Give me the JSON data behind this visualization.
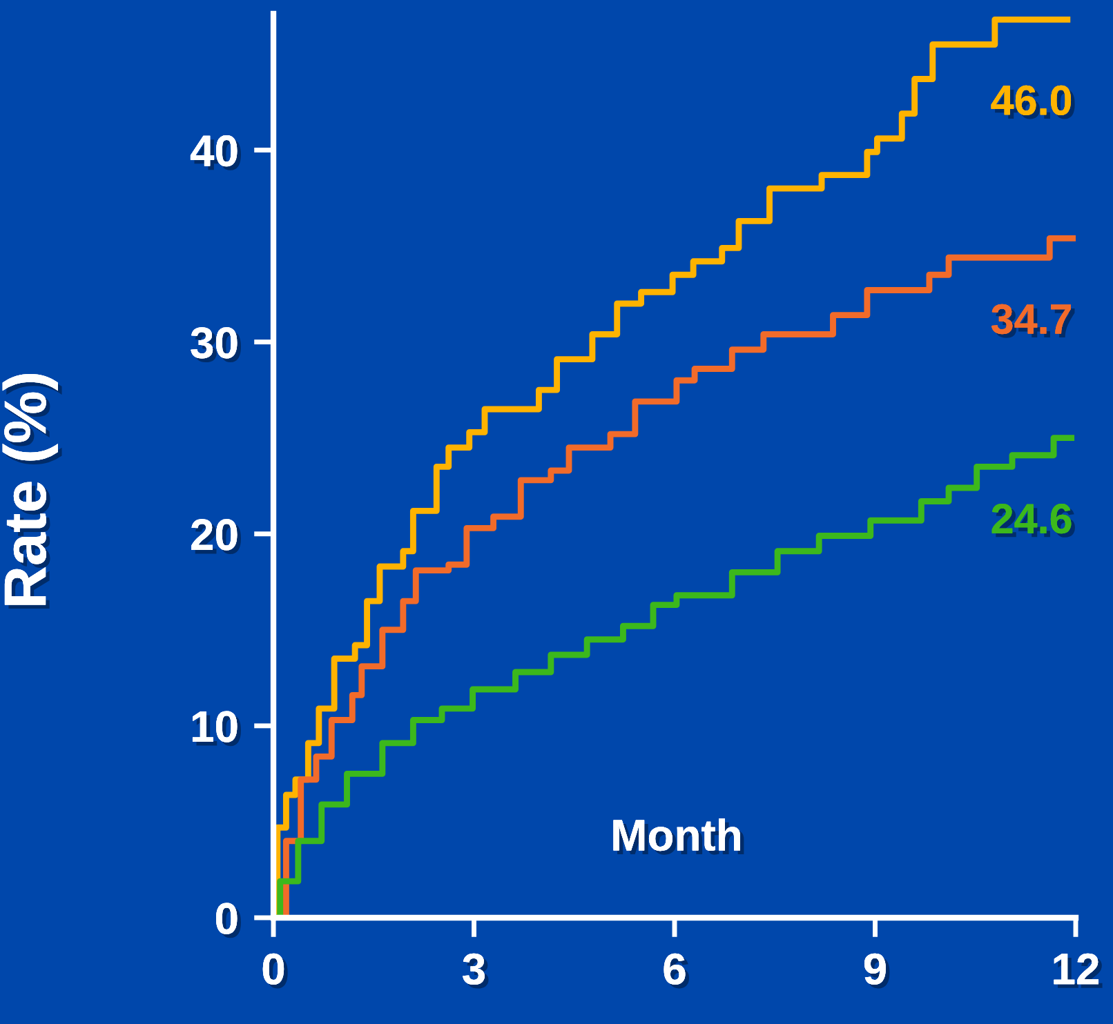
{
  "chart_data": {
    "type": "step",
    "xlabel": "Month",
    "ylabel": "Rate (%)",
    "x": [
      0,
      0.06,
      0.19,
      0.33,
      0.52,
      0.68,
      0.91,
      1.22,
      1.4,
      1.59,
      1.94,
      2.09,
      2.44,
      2.62,
      2.93,
      3.16,
      3.97,
      4.24,
      4.77,
      5.14,
      5.5,
      5.97,
      6.28,
      6.71,
      6.96,
      7.42,
      8.2,
      8.88,
      9.03,
      9.4,
      9.59,
      9.86,
      10.79,
      11.92
    ],
    "series": [
      {
        "color": "#ffb300",
        "values": [
          0,
          4.7,
          6.4,
          7.2,
          9.1,
          10.9,
          13.5,
          14.2,
          16.5,
          18.3,
          19.1,
          21.2,
          23.5,
          24.5,
          25.3,
          26.5,
          27.5,
          29.1,
          30.4,
          32.0,
          32.6,
          33.5,
          34.2,
          34.9,
          36.3,
          38.0,
          38.7,
          39.9,
          40.6,
          41.9,
          43.7,
          45.5,
          46.8,
          46.8
        ]
      },
      {
        "color": "#f26b2a",
        "x": [
          0,
          0.19,
          0.41,
          0.64,
          0.87,
          1.18,
          1.32,
          1.63,
          1.94,
          2.13,
          2.62,
          2.89,
          3.29,
          3.7,
          4.15,
          4.42,
          5.04,
          5.41,
          6.03,
          6.3,
          6.86,
          7.33,
          8.37,
          8.88,
          9.81,
          10.1,
          11.61,
          12.0
        ],
        "values": [
          0,
          4.0,
          7.2,
          8.4,
          10.3,
          11.6,
          13.1,
          15.0,
          16.5,
          18.1,
          18.4,
          20.3,
          20.9,
          22.8,
          23.3,
          24.5,
          25.2,
          26.9,
          28.0,
          28.6,
          29.6,
          30.4,
          31.4,
          32.7,
          33.5,
          34.4,
          35.4,
          35.4
        ]
      },
      {
        "color": "#3cb81c",
        "x": [
          0,
          0.1,
          0.37,
          0.72,
          1.1,
          1.63,
          2.09,
          2.52,
          2.98,
          3.62,
          4.15,
          4.69,
          5.23,
          5.68,
          6.03,
          6.86,
          7.54,
          8.16,
          8.93,
          9.69,
          10.1,
          10.52,
          11.05,
          11.67,
          11.98
        ],
        "values": [
          0,
          1.9,
          4.0,
          5.9,
          7.5,
          9.1,
          10.3,
          10.9,
          11.9,
          12.8,
          13.7,
          14.5,
          15.2,
          16.3,
          16.8,
          18.0,
          19.1,
          19.9,
          20.7,
          21.7,
          22.4,
          23.5,
          24.1,
          25.0,
          25.0
        ]
      }
    ],
    "annotations": [
      "46.0",
      "34.7",
      "24.6"
    ],
    "xlim": [
      0,
      12
    ],
    "ylim": [
      0,
      47.1
    ],
    "xticks": [
      0,
      3,
      6,
      9,
      12
    ],
    "yticks": [
      0,
      10,
      20,
      30,
      40
    ],
    "grid": false,
    "marker": "none",
    "line_style": "solid"
  }
}
